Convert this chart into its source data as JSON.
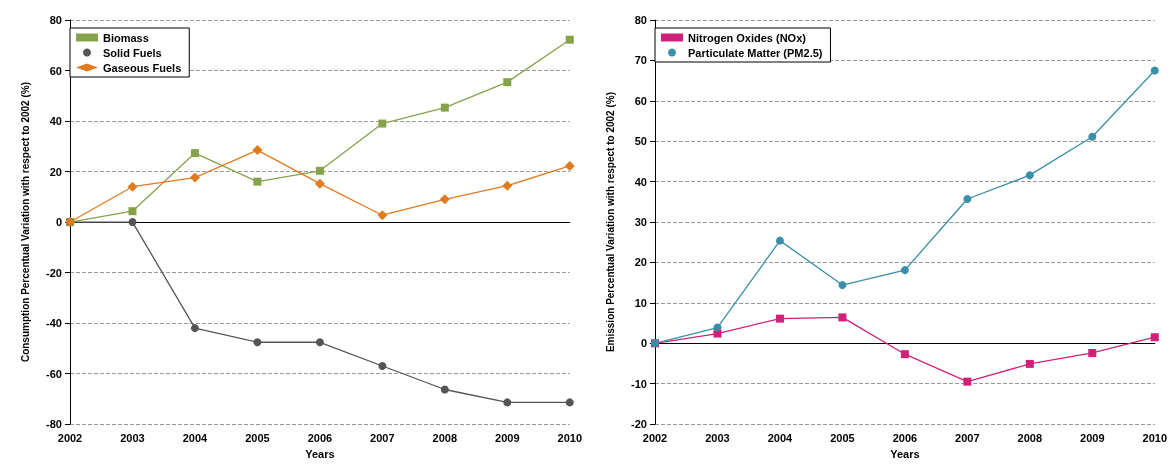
{
  "chart_data": [
    {
      "type": "line",
      "xlabel": "Years",
      "ylabel": "Consumption Percentual Variation with respect to 2002 (%)",
      "categories": [
        "2002",
        "2003",
        "2004",
        "2005",
        "2006",
        "2007",
        "2008",
        "2009",
        "2010"
      ],
      "ylim": [
        -80,
        80
      ],
      "yticks": [
        -80,
        -60,
        -40,
        -20,
        0,
        20,
        40,
        60,
        80
      ],
      "grid": "y",
      "legend": "top left",
      "series": [
        {
          "name": "Biomass",
          "color": "#86a24a",
          "marker": "square",
          "values": [
            0,
            4.3,
            27.3,
            16,
            20.3,
            39,
            45.3,
            55.4,
            72.2
          ]
        },
        {
          "name": "Solid Fuels",
          "color": "#555555",
          "marker": "circle",
          "values": [
            0,
            0,
            -42,
            -47.6,
            -47.6,
            -57,
            -66.3,
            -71.4,
            -71.4
          ]
        },
        {
          "name": "Gaseous Fuels",
          "color": "#e07b1f",
          "marker": "diamond",
          "values": [
            0,
            14,
            17.6,
            28.5,
            15.2,
            2.7,
            9,
            14.4,
            22.2
          ]
        }
      ]
    },
    {
      "type": "line",
      "xlabel": "Years",
      "ylabel": "Emission Percentual Variation with respect to 2002 (%)",
      "categories": [
        "2002",
        "2003",
        "2004",
        "2005",
        "2006",
        "2007",
        "2008",
        "2009",
        "2010"
      ],
      "ylim": [
        -20,
        80
      ],
      "yticks": [
        -20,
        -10,
        0,
        10,
        20,
        30,
        40,
        50,
        60,
        70,
        80
      ],
      "grid": "y",
      "legend": "top left",
      "series": [
        {
          "name": "Nitrogen Oxides (NOx)",
          "color": "#d0217a",
          "marker": "square",
          "values": [
            0,
            2.4,
            6.1,
            6.4,
            -2.7,
            -9.5,
            -5.1,
            -2.4,
            1.5
          ]
        },
        {
          "name": "Particulate Matter (PM2.5)",
          "color": "#3a8fa8",
          "marker": "circle",
          "values": [
            0,
            3.9,
            25.4,
            14.4,
            18.1,
            35.7,
            41.6,
            51.1,
            67.5
          ]
        }
      ]
    }
  ]
}
